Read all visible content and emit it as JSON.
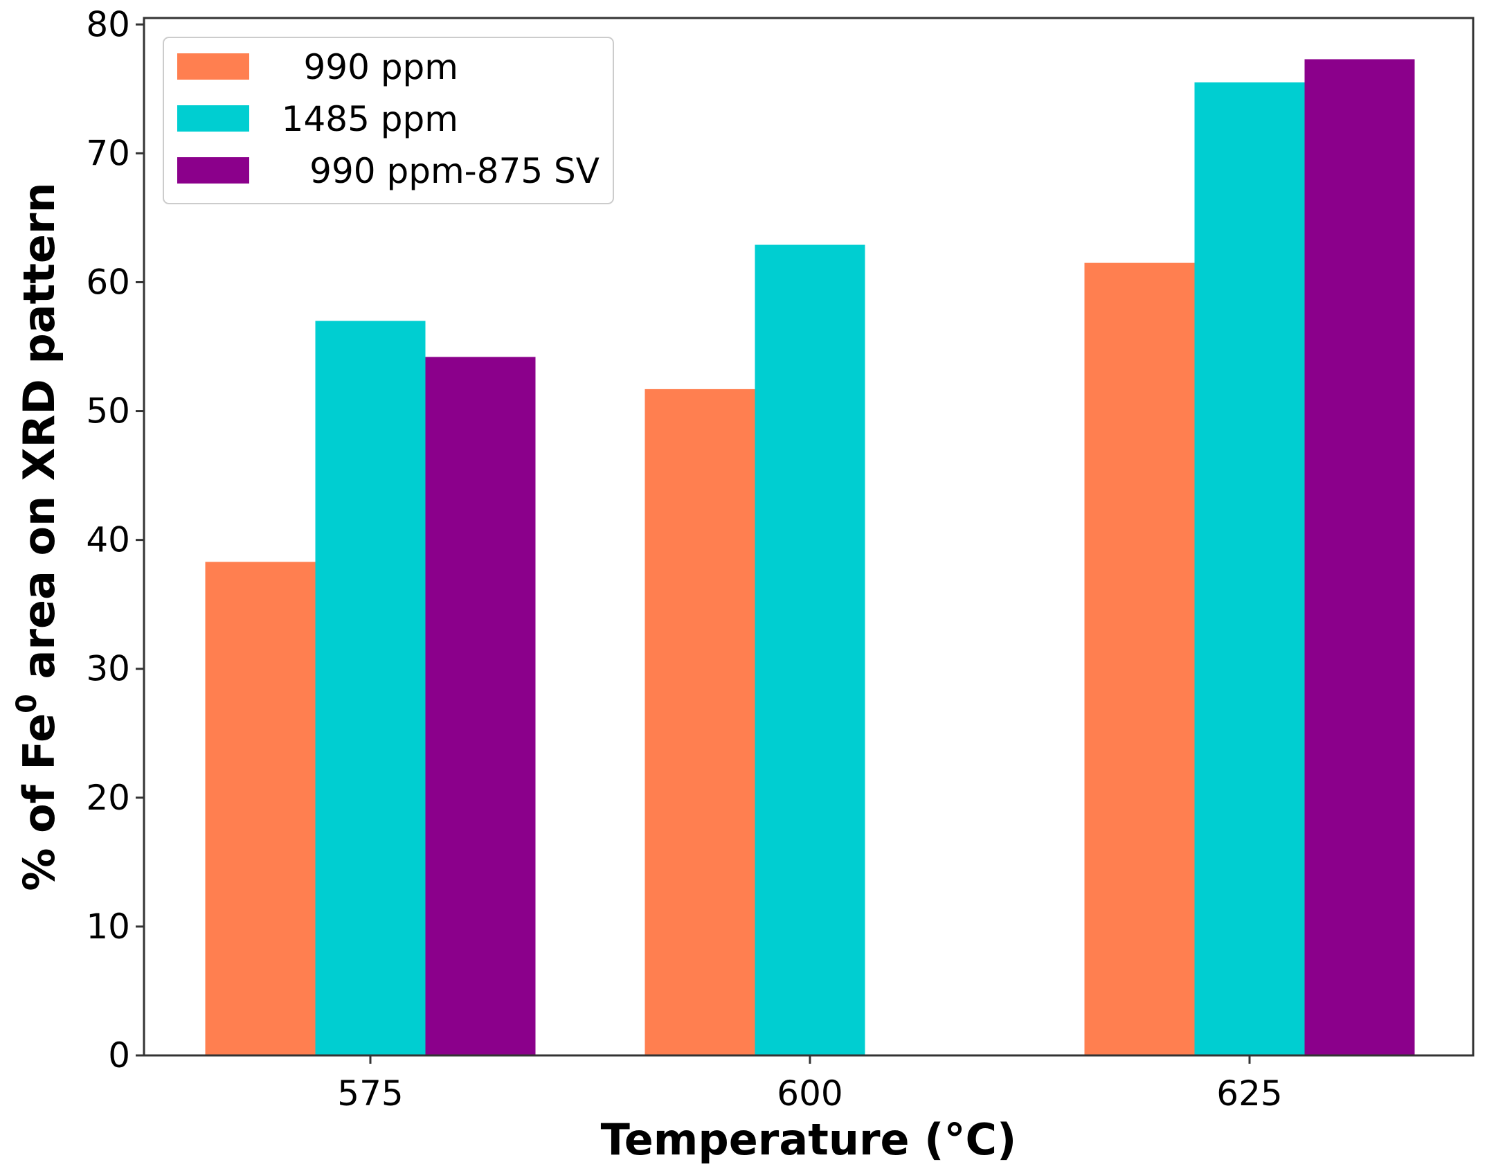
{
  "chart_data": {
    "type": "bar",
    "title": "",
    "xlabel": "Temperature (°C)",
    "ylabel": {
      "prefix": "% of Fe",
      "superscript": "0",
      "suffix": " area on XRD pattern"
    },
    "categories": [
      "575",
      "600",
      "625"
    ],
    "series": [
      {
        "name": "990 ppm",
        "color": "#FF7F50",
        "values": [
          38.3,
          51.7,
          61.5
        ]
      },
      {
        "name": "1485 ppm",
        "color": "#00CED1",
        "values": [
          57.0,
          62.9,
          75.5
        ]
      },
      {
        "name": "990 ppm-875 SV",
        "color": "#8B008B",
        "values": [
          54.2,
          null,
          77.3
        ]
      }
    ],
    "ylim": [
      0,
      80.5
    ],
    "yticks": [
      0,
      10,
      20,
      30,
      40,
      50,
      60,
      70,
      80
    ],
    "grid": false,
    "legend_position": "top-left"
  }
}
